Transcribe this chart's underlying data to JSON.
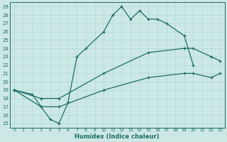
{
  "xlabel": "Humidex (Indice chaleur)",
  "bg_color": "#cce8e5",
  "line_color": "#1a6e65",
  "grid_color": "#b0d8d4",
  "xlim": [
    -0.5,
    23.5
  ],
  "ylim": [
    14.5,
    29.5
  ],
  "yticks": [
    15,
    16,
    17,
    18,
    19,
    20,
    21,
    22,
    23,
    24,
    25,
    26,
    27,
    28,
    29
  ],
  "xticks": [
    0,
    1,
    2,
    3,
    4,
    5,
    6,
    7,
    8,
    9,
    10,
    11,
    12,
    13,
    14,
    15,
    16,
    17,
    18,
    19,
    20,
    21,
    22,
    23
  ],
  "line1_x": [
    0,
    2,
    3,
    4,
    5,
    6,
    7,
    8,
    10,
    11,
    12,
    13,
    14,
    15,
    16,
    17,
    19,
    20
  ],
  "line1_y": [
    19,
    18.5,
    17,
    15.5,
    15,
    17.5,
    23,
    24,
    26,
    28,
    29,
    27.5,
    28.5,
    27.5,
    27.5,
    27,
    25.5,
    22
  ],
  "line2_x": [
    0,
    3,
    5,
    10,
    15,
    19,
    20,
    22,
    23
  ],
  "line2_y": [
    19,
    18,
    18,
    21,
    23.5,
    24,
    24,
    23,
    22.5
  ],
  "line3_x": [
    0,
    3,
    5,
    10,
    15,
    19,
    20,
    22,
    23
  ],
  "line3_y": [
    19,
    17,
    17,
    19,
    20.5,
    21,
    21,
    20.5,
    21
  ]
}
